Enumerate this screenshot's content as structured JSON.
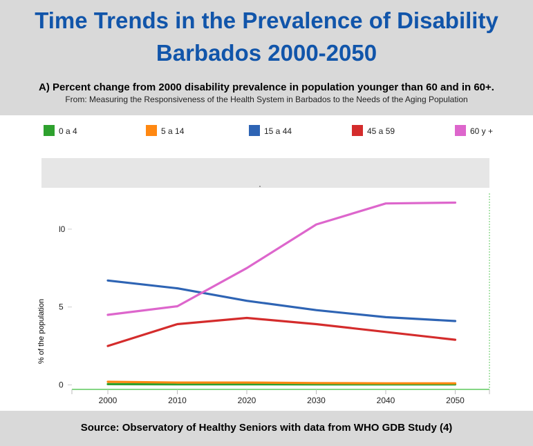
{
  "header": {
    "title_line_1": "Time Trends in the Prevalence of Disability",
    "title_line_2": "Barbados  2000-2050",
    "subtitle": "A) Percent change from 2000 disability prevalence in population younger than 60 and in 60+.",
    "source_note": "From: Measuring the Responsiveness of the Health System in Barbados to the Needs of the Aging Population"
  },
  "footer": {
    "text": "Source: Observatory of Healthy Seniors with data from WHO GDB Study (4)"
  },
  "colors": {
    "title": "#1155aa",
    "background_band": "#d9d9d9",
    "axis_line": "#5cc85c"
  },
  "chart_data": {
    "type": "line",
    "title": "",
    "xlabel": "",
    "ylabel": "% of the population",
    "x": [
      2000,
      2010,
      2020,
      2030,
      2040,
      2050
    ],
    "x_tick_labels": [
      "2000",
      "2010",
      "2020",
      "2030",
      "2040",
      "2050"
    ],
    "y_tick_labels": [
      "0",
      "5",
      "l0"
    ],
    "y_tick_values": [
      0,
      5,
      10
    ],
    "ylim": [
      -0.2,
      12.3
    ],
    "grid": false,
    "legend_position": "top",
    "series": [
      {
        "name": "0 a 4",
        "color": "#2ea12e",
        "values": [
          0.05,
          0.04,
          0.04,
          0.03,
          0.03,
          0.03
        ]
      },
      {
        "name": "5 a 14",
        "color": "#ff8811",
        "values": [
          0.2,
          0.15,
          0.15,
          0.12,
          0.1,
          0.1
        ]
      },
      {
        "name": "15 a 44",
        "color": "#2e64b4",
        "values": [
          6.7,
          6.2,
          5.4,
          4.8,
          4.35,
          4.1
        ]
      },
      {
        "name": "45 a 59",
        "color": "#d42c2c",
        "values": [
          2.5,
          3.9,
          4.3,
          3.9,
          3.4,
          2.9
        ]
      },
      {
        "name": "60 y +",
        "color": "#dd66cc",
        "values": [
          4.5,
          5.05,
          7.5,
          10.3,
          11.65,
          11.7
        ]
      }
    ]
  }
}
